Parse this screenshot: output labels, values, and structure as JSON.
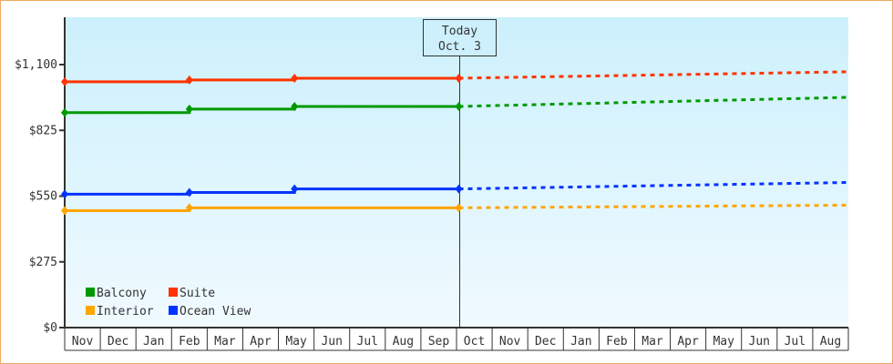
{
  "chart_data": {
    "type": "line",
    "title": "",
    "xlabel": "",
    "ylabel": "",
    "ylim": [
      0,
      1150
    ],
    "y_ticks": [
      {
        "value": 0,
        "label": "$0"
      },
      {
        "value": 275,
        "label": "$275"
      },
      {
        "value": 550,
        "label": "$550"
      },
      {
        "value": 825,
        "label": "$825"
      },
      {
        "value": 1100,
        "label": "$1,100"
      }
    ],
    "x_ticks": [
      "Nov",
      "Dec",
      "Jan",
      "Feb",
      "Mar",
      "Apr",
      "May",
      "Jun",
      "Jul",
      "Aug",
      "Sep",
      "Oct",
      "Nov",
      "Dec",
      "Jan",
      "Feb",
      "Mar",
      "Apr",
      "May",
      "Jun",
      "Jul",
      "Aug"
    ],
    "grid": false,
    "legend_placement": "bottom-left",
    "today_marker": {
      "line1": "Today",
      "line2": "Oct. 3"
    },
    "series": [
      {
        "name": "Balcony",
        "color": "#009900",
        "history": [
          {
            "date": "Nov 1",
            "value": 899
          },
          {
            "date": "Feb 15",
            "value": 914
          },
          {
            "date": "May 15",
            "value": 925
          },
          {
            "date": "Oct 3",
            "value": 925
          }
        ],
        "forecast": [
          {
            "date": "Oct 3",
            "value": 925
          },
          {
            "date": "Aug 31",
            "value": 963
          }
        ]
      },
      {
        "name": "Suite",
        "color": "#ff3300",
        "history": [
          {
            "date": "Nov 1",
            "value": 1028
          },
          {
            "date": "Feb 15",
            "value": 1036
          },
          {
            "date": "May 15",
            "value": 1043
          },
          {
            "date": "Oct 3",
            "value": 1043
          }
        ],
        "forecast": [
          {
            "date": "Oct 3",
            "value": 1043
          },
          {
            "date": "Aug 31",
            "value": 1070
          }
        ]
      },
      {
        "name": "Interior",
        "color": "#ffa500",
        "history": [
          {
            "date": "Nov 1",
            "value": 489
          },
          {
            "date": "Feb 15",
            "value": 501
          },
          {
            "date": "Oct 3",
            "value": 501
          }
        ],
        "forecast": [
          {
            "date": "Oct 3",
            "value": 501
          },
          {
            "date": "Aug 31",
            "value": 512
          }
        ]
      },
      {
        "name": "Ocean View",
        "color": "#0033ff",
        "history": [
          {
            "date": "Nov 1",
            "value": 558
          },
          {
            "date": "Feb 15",
            "value": 565
          },
          {
            "date": "May 15",
            "value": 580
          },
          {
            "date": "Oct 3",
            "value": 580
          }
        ],
        "forecast": [
          {
            "date": "Oct 3",
            "value": 580
          },
          {
            "date": "Aug 31",
            "value": 607
          }
        ]
      }
    ]
  }
}
